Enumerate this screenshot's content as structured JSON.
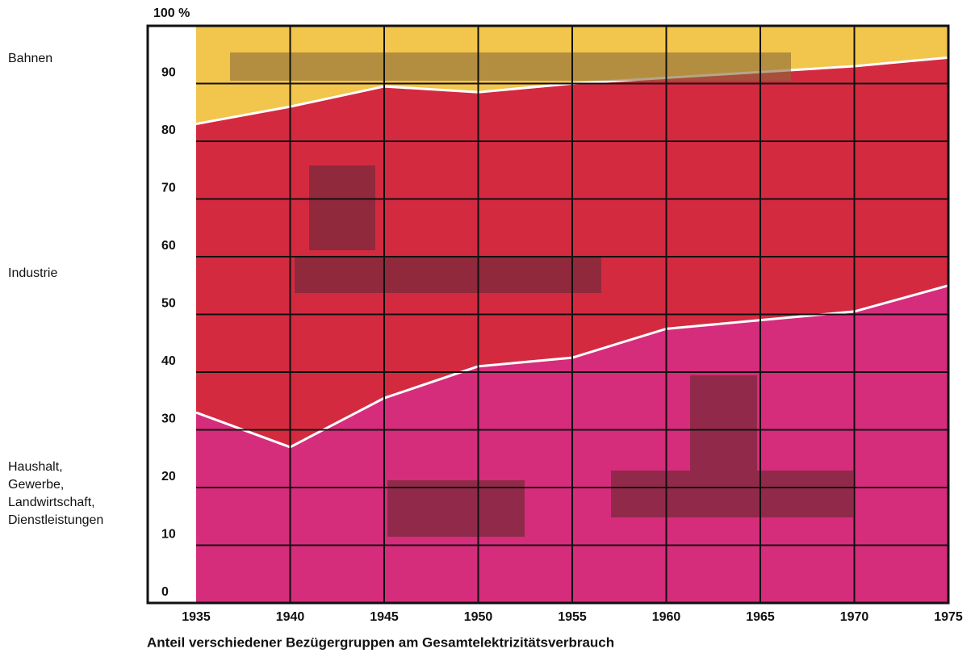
{
  "chart_data": {
    "type": "stacked_area",
    "title": "Anteil verschiedener Bezügergruppen am Gesamtelektrizitätsverbrauch",
    "x": [
      1935,
      1940,
      1945,
      1950,
      1955,
      1960,
      1965,
      1970,
      1975
    ],
    "xlim": [
      1935,
      1975
    ],
    "xticks": [
      1935,
      1940,
      1945,
      1950,
      1955,
      1960,
      1965,
      1970,
      1975
    ],
    "ylim": [
      0,
      100
    ],
    "yticks": [
      0,
      10,
      20,
      30,
      40,
      50,
      60,
      70,
      80,
      90,
      {
        "value": 100,
        "label": "100 %"
      }
    ],
    "grid": true,
    "series": [
      {
        "name": "Haushalt,\nGewerbe,\nLandwirtschaft,\nDienstleistungen",
        "color": "#d62c7c",
        "values": [
          33,
          27,
          35.5,
          41,
          42.5,
          47.5,
          49,
          50.5,
          55
        ]
      },
      {
        "name": "Industrie",
        "color": "#d42a40",
        "values": [
          50,
          59,
          54,
          47.5,
          47.5,
          43.5,
          43,
          42.5,
          39.5
        ]
      },
      {
        "name": "Bahnen",
        "color": "#f2c54c",
        "values": [
          17,
          14,
          10.5,
          11.5,
          10,
          9,
          8,
          7,
          5.5
        ]
      }
    ]
  }
}
